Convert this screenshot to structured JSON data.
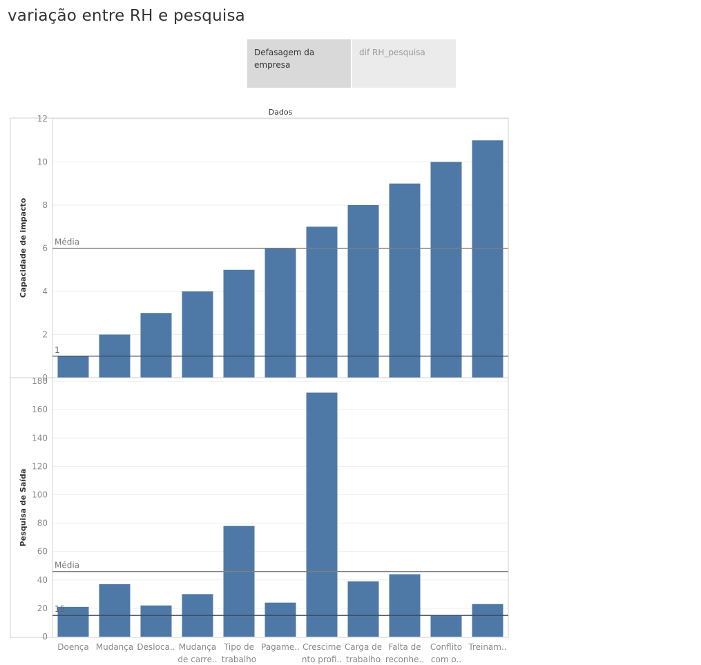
{
  "page": {
    "title": "variação entre RH e pesquisa"
  },
  "tabs": [
    {
      "label": "Defasagem da empresa",
      "active": true
    },
    {
      "label": "dif RH_pesquisa",
      "active": false
    }
  ],
  "colors": {
    "bar": "#4e79a7",
    "refline": "#7f7f7f",
    "minline": "#3d4a5a",
    "grid": "#eeeeee",
    "axis_text": "#888888"
  },
  "chart_data": {
    "type": "bar",
    "title": "Dados",
    "categories": [
      [
        "Doença"
      ],
      [
        "Mudança"
      ],
      [
        "Desloca.."
      ],
      [
        "Mudança",
        "de carre.."
      ],
      [
        "Tipo de",
        "trabalho"
      ],
      [
        "Pagame.."
      ],
      [
        "Crescime",
        "nto profi.."
      ],
      [
        "Carga de",
        "trabalho"
      ],
      [
        "Falta de",
        "reconhe.."
      ],
      [
        "Conflito",
        "com o.."
      ],
      [
        "Treinam.."
      ]
    ],
    "panels": [
      {
        "ylabel": "Capacidade de impacto",
        "ylim": [
          0,
          12
        ],
        "ticks": [
          0,
          2,
          4,
          6,
          8,
          10,
          12
        ],
        "values": [
          1,
          2,
          3,
          4,
          5,
          6,
          7,
          8,
          9,
          10,
          11
        ],
        "reference_lines": [
          {
            "label": "Média",
            "value": 6
          },
          {
            "label": "1",
            "value": 1
          }
        ]
      },
      {
        "ylabel": "Pesquisa de Saída",
        "ylim": [
          0,
          182
        ],
        "ticks": [
          0,
          20,
          40,
          60,
          80,
          100,
          120,
          140,
          160,
          180
        ],
        "values": [
          21,
          37,
          22,
          30,
          78,
          24,
          172,
          39,
          44,
          15,
          23
        ],
        "reference_lines": [
          {
            "label": "Média",
            "value": 45.9
          },
          {
            "label": "15",
            "value": 15
          }
        ]
      }
    ],
    "grid": true
  }
}
